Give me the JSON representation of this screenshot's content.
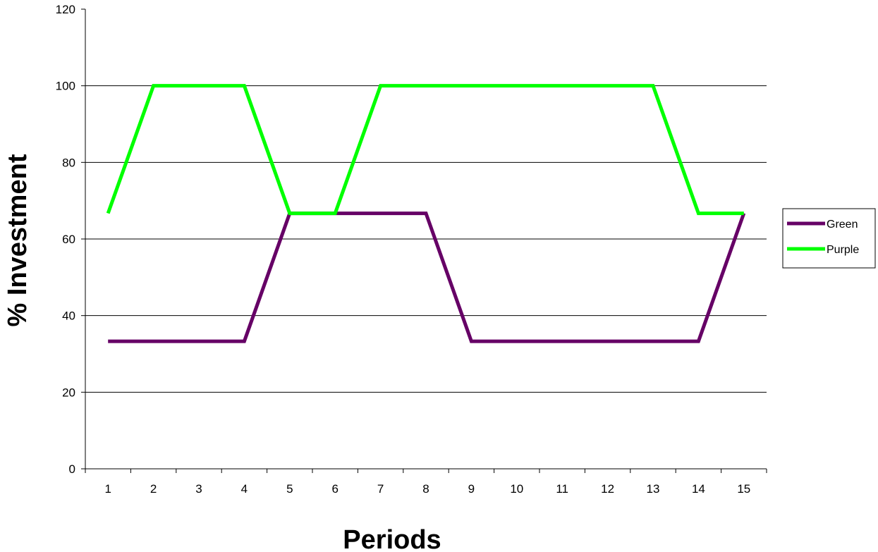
{
  "chart_data": {
    "type": "line",
    "title": "",
    "xlabel": "Periods",
    "ylabel": "% Investment",
    "categories": [
      "1",
      "2",
      "3",
      "4",
      "5",
      "6",
      "7",
      "8",
      "9",
      "10",
      "11",
      "12",
      "13",
      "14",
      "15"
    ],
    "ylim": [
      0,
      120
    ],
    "yticks": [
      0,
      20,
      40,
      60,
      80,
      100,
      120
    ],
    "grid": "horizontal",
    "legend": "right",
    "series": [
      {
        "name": "Green",
        "color": "#660066",
        "values": [
          33.3,
          33.3,
          33.3,
          33.3,
          66.7,
          66.7,
          66.7,
          66.7,
          33.3,
          33.3,
          33.3,
          33.3,
          33.3,
          33.3,
          66.7
        ]
      },
      {
        "name": "Purple",
        "color": "#00ff00",
        "values": [
          66.7,
          100,
          100,
          100,
          66.7,
          66.7,
          100,
          100,
          100,
          100,
          100,
          100,
          100,
          66.7,
          66.7
        ]
      }
    ]
  }
}
